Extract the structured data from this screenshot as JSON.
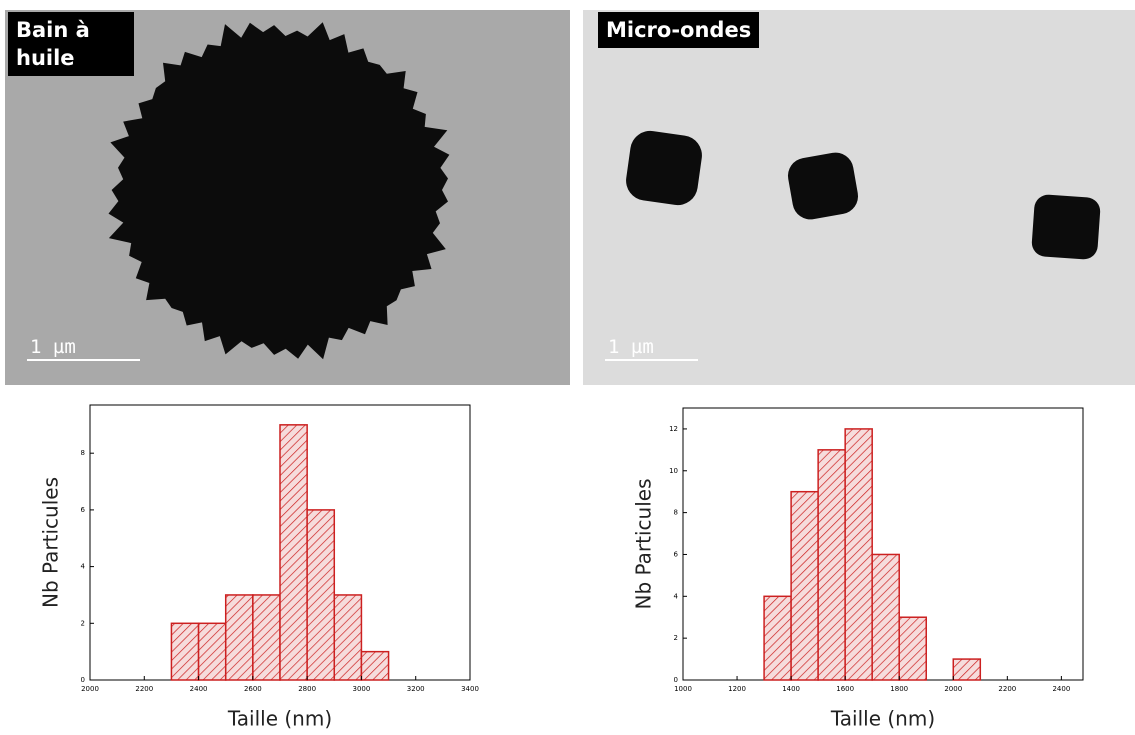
{
  "images": [
    {
      "label": "Bain à huile",
      "scale_bar": "1 µm"
    },
    {
      "label": "Micro-ondes",
      "scale_bar": "1 µm"
    }
  ],
  "chart_data": [
    {
      "type": "histogram",
      "xlabel": "Taille (nm)",
      "ylabel": "Nb Particules",
      "color": "#cc2020",
      "bins": [
        2300,
        2400,
        2500,
        2600,
        2700,
        2800,
        2900,
        3000,
        3100
      ],
      "values": [
        2,
        2,
        3,
        3,
        9,
        6,
        3,
        1
      ],
      "xlim": [
        2000,
        3400
      ],
      "xticks": [
        2000,
        2200,
        2400,
        2600,
        2800,
        3000,
        3200,
        3400
      ],
      "ylim": [
        0,
        9.7
      ],
      "yticks": [
        0,
        2,
        4,
        6,
        8
      ]
    },
    {
      "type": "histogram",
      "xlabel": "Taille (nm)",
      "ylabel": "Nb Particules",
      "color": "#cc2020",
      "bins": [
        1300,
        1400,
        1500,
        1600,
        1700,
        1800,
        1900,
        2000,
        2100
      ],
      "values": [
        4,
        9,
        11,
        12,
        6,
        3,
        0,
        1
      ],
      "xlim": [
        1000,
        2480
      ],
      "xticks": [
        1000,
        1200,
        1400,
        1600,
        1800,
        2000,
        2200,
        2400
      ],
      "ylim": [
        0,
        13
      ],
      "yticks": [
        0,
        2,
        4,
        6,
        8,
        10,
        12
      ]
    }
  ]
}
